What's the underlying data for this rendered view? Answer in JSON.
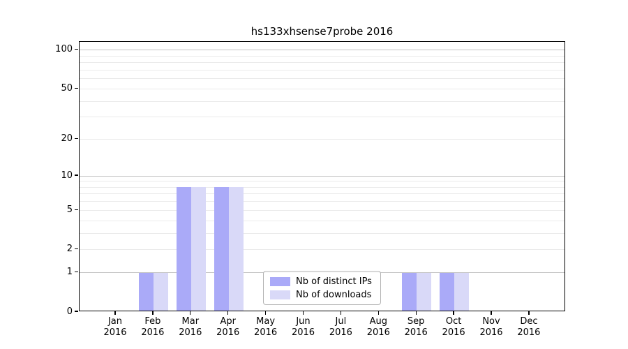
{
  "chart_data": {
    "type": "bar",
    "title": "hs133xhsense7probe 2016",
    "year_label": "2016",
    "categories": [
      "Jan",
      "Feb",
      "Mar",
      "Apr",
      "May",
      "Jun",
      "Jul",
      "Aug",
      "Sep",
      "Oct",
      "Nov",
      "Dec"
    ],
    "series": [
      {
        "name": "Nb of distinct IPs",
        "color": "#aaaaf8",
        "values": [
          0,
          1,
          8,
          8,
          0,
          0,
          0,
          0,
          1,
          1,
          0,
          0
        ]
      },
      {
        "name": "Nb of downloads",
        "color": "#d9d9f8",
        "values": [
          0,
          1,
          8,
          8,
          0,
          0,
          0,
          0,
          1,
          1,
          0,
          0
        ]
      }
    ],
    "y_scale": "log1p",
    "y_axis_tick_labels": [
      "0",
      "1",
      "2",
      "5",
      "10",
      "20",
      "50",
      "100"
    ],
    "y_ticks": [
      0,
      1,
      2,
      5,
      10,
      20,
      50,
      100
    ],
    "y_major_gridlines": [
      1,
      10,
      100
    ],
    "y_minor_gridlines": [
      2,
      3,
      4,
      5,
      6,
      7,
      8,
      9,
      20,
      30,
      40,
      50,
      60,
      70,
      80,
      90
    ],
    "ylim": [
      0,
      115
    ],
    "legend_position": "lower center inside plot",
    "grid": "on",
    "colors": {
      "major_grid": "#c4c4c4",
      "minor_grid": "#eaeaea",
      "axis": "#000000",
      "background": "#ffffff"
    }
  }
}
